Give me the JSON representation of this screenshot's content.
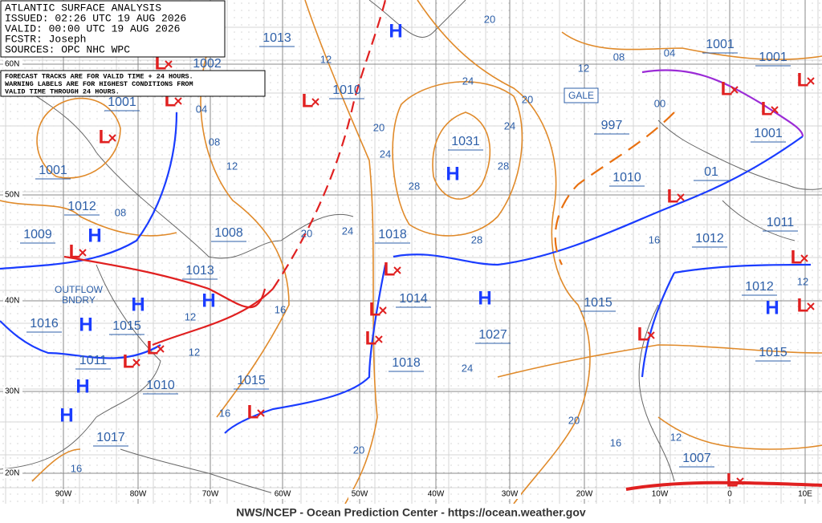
{
  "header": {
    "lines": [
      "ATLANTIC SURFACE ANALYSIS",
      "ISSUED: 02:26 UTC 19 AUG 2026",
      "VALID:  00:00 UTC 19 AUG 2026",
      "FCSTR:  Joseph",
      "SOURCES: OPC NHC WPC"
    ]
  },
  "note": {
    "lines": [
      "FORECAST TRACKS ARE FOR VALID TIME + 24 HOURS.",
      "WARNING LABELS ARE FOR HIGHEST CONDITIONS FROM",
      "VALID TIME THROUGH 24 HOURS."
    ]
  },
  "footer": "NWS/NCEP - Ocean Prediction Center - https://ocean.weather.gov",
  "latitude_labels": [
    "60N",
    "50N",
    "40N",
    "30N",
    "20N"
  ],
  "longitude_labels": [
    "90W",
    "80W",
    "70W",
    "60W",
    "50W",
    "40W",
    "30W",
    "20W",
    "10W",
    "0",
    "10E"
  ],
  "high_symbol": "H",
  "low_symbol": "L",
  "pressure_labels": [
    "1013",
    "1002",
    "1010",
    "1001",
    "1001",
    "1012",
    "1009",
    "1008",
    "1013",
    "1016",
    "1015",
    "1011",
    "1010",
    "1017",
    "1015",
    "1018",
    "1014",
    "1018",
    "1031",
    "1027",
    "997",
    "1010",
    "1001",
    "1001",
    "1001",
    "01",
    "1011",
    "1012",
    "1015",
    "1012",
    "1015",
    "1007"
  ],
  "isobar_labels": [
    "12",
    "04",
    "08",
    "12",
    "08",
    "20",
    "24",
    "20",
    "12",
    "08",
    "04",
    "00",
    "20",
    "24",
    "24",
    "28",
    "28",
    "28",
    "20",
    "24",
    "16",
    "12",
    "12",
    "16",
    "20",
    "24",
    "20",
    "16",
    "12",
    "16",
    "12",
    "16"
  ],
  "warnings": [
    "GALE"
  ],
  "boundary_label": {
    "lines": [
      "OUTFLOW",
      "BNDRY"
    ]
  }
}
